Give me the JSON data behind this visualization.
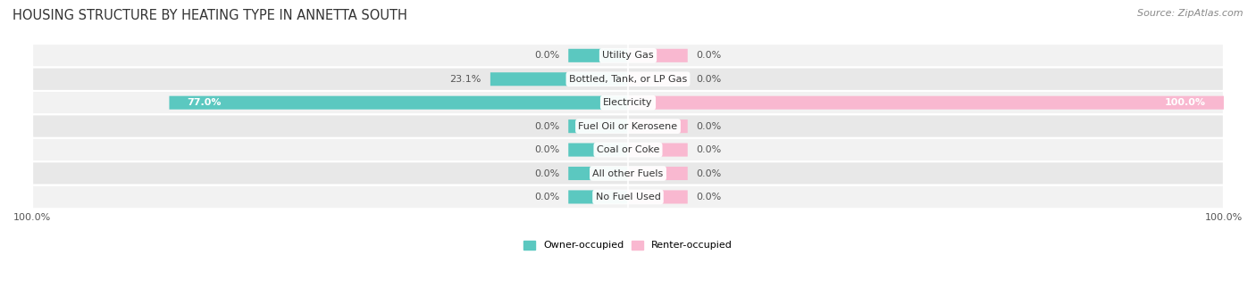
{
  "title": "HOUSING STRUCTURE BY HEATING TYPE IN ANNETTA SOUTH",
  "source": "Source: ZipAtlas.com",
  "categories": [
    "Utility Gas",
    "Bottled, Tank, or LP Gas",
    "Electricity",
    "Fuel Oil or Kerosene",
    "Coal or Coke",
    "All other Fuels",
    "No Fuel Used"
  ],
  "owner_values": [
    0.0,
    23.1,
    77.0,
    0.0,
    0.0,
    0.0,
    0.0
  ],
  "renter_values": [
    0.0,
    0.0,
    100.0,
    0.0,
    0.0,
    0.0,
    0.0
  ],
  "owner_color": "#5BC8C0",
  "renter_color": "#F B9DC5",
  "owner_label": "Owner-occupied",
  "renter_label": "Renter-occupied",
  "row_bg_light": "#F2F2F2",
  "row_bg_dark": "#E8E8E8",
  "title_fontsize": 10.5,
  "source_fontsize": 8,
  "value_fontsize": 8,
  "cat_fontsize": 8,
  "axis_max": 100.0,
  "stub_size": 10.0,
  "bar_height": 0.55
}
